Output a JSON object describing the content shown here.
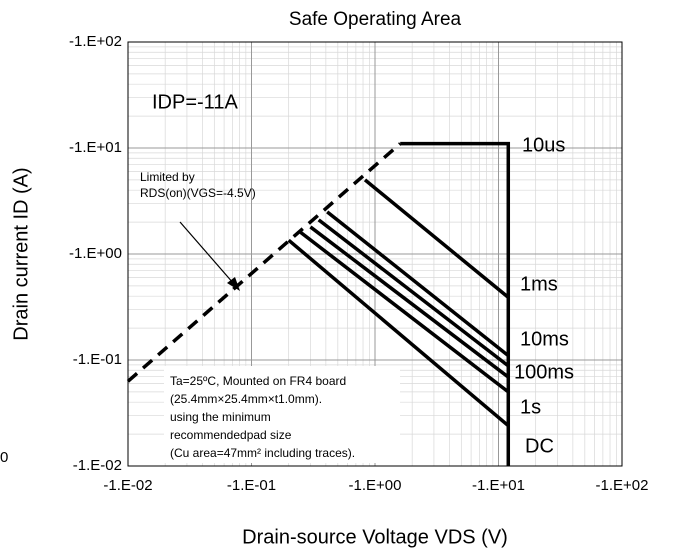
{
  "chart_data": {
    "type": "line",
    "title": "Safe Operating Area",
    "xlabel": "Drain-source Voltage VDS (V)",
    "ylabel": "Drain current ID (A)",
    "xscale": "log",
    "yscale": "log",
    "grid": true,
    "xlim": [
      -0.01,
      -100
    ],
    "ylim": [
      -0.01,
      -100
    ],
    "xticks": [
      {
        "value": -0.01,
        "label": "-1.E-02"
      },
      {
        "value": -0.1,
        "label": "-1.E-01"
      },
      {
        "value": -1,
        "label": "-1.E+00"
      },
      {
        "value": -10,
        "label": "-1.E+01"
      },
      {
        "value": -100,
        "label": "-1.E+02"
      }
    ],
    "yticks": [
      {
        "value": -0.01,
        "label": "-1.E-02"
      },
      {
        "value": -0.1,
        "label": "-1.E-01"
      },
      {
        "value": -1,
        "label": "-1.E+00"
      },
      {
        "value": -10,
        "label": "-1.E+01"
      },
      {
        "value": -100,
        "label": "-1.E+02"
      }
    ],
    "series": [
      {
        "color": "#000000",
        "dashed": true,
        "x": [
          -0.01,
          -1.6
        ],
        "values": [
          -0.063,
          -11
        ]
      },
      {
        "name": "10us",
        "color": "#000000",
        "x": [
          -1.6,
          -12,
          -12
        ],
        "values": [
          -11,
          -11,
          -0.01
        ]
      },
      {
        "name": "1ms",
        "color": "#000000",
        "x": [
          -0.83,
          -12
        ],
        "values": [
          -5.0,
          -0.39
        ]
      },
      {
        "name": "10ms",
        "color": "#000000",
        "x": [
          -0.41,
          -12
        ],
        "values": [
          -2.5,
          -0.11
        ]
      },
      {
        "name": "100ms",
        "color": "#000000",
        "x": [
          -0.35,
          -12
        ],
        "values": [
          -2.1,
          -0.088
        ]
      },
      {
        "color": "#000000",
        "x": [
          -0.3,
          -12
        ],
        "values": [
          -1.8,
          -0.069
        ]
      },
      {
        "name": "1s",
        "color": "#000000",
        "x": [
          -0.25,
          -12
        ],
        "values": [
          -1.6,
          -0.05
        ]
      },
      {
        "name": "DC",
        "color": "#000000",
        "x": [
          -0.2,
          -12
        ],
        "values": [
          -1.35,
          -0.024
        ]
      }
    ],
    "annotations": [
      "IDP=-11A",
      "Limited by",
      "RDS(on)(VGS=-4.5V)",
      "Ta=25ºC, Mounted on FR4 board",
      "(25.4mm×25.4mm×t1.0mm).",
      "using the minimum",
      "recommendedpad size",
      "(Cu area=47mm² including traces).",
      "0"
    ]
  }
}
